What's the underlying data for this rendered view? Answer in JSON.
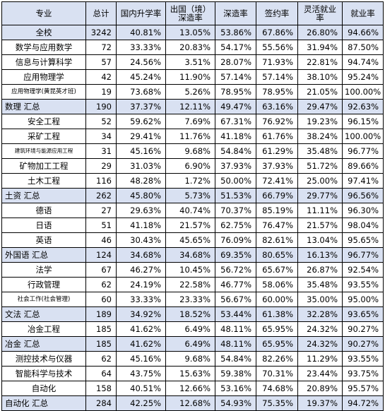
{
  "headers": [
    "专业",
    "总计",
    "国内升学率",
    "出国（境）深造率",
    "深造率",
    "签约率",
    "灵活就业率",
    "就业率"
  ],
  "rows": [
    {
      "name": "全校",
      "total": "3242",
      "domestic": "40.81%",
      "abroad": "13.05%",
      "further": "53.86%",
      "contract": "67.86%",
      "flexible": "26.80%",
      "employ": "94.66%",
      "kind": "sum",
      "align": "center",
      "size": ""
    },
    {
      "name": "数学与应用数学",
      "total": "72",
      "domestic": "33.33%",
      "abroad": "20.83%",
      "further": "54.17%",
      "contract": "55.56%",
      "flexible": "31.94%",
      "employ": "87.50%",
      "kind": "row",
      "align": "center",
      "size": ""
    },
    {
      "name": "信息与计算科学",
      "total": "57",
      "domestic": "24.56%",
      "abroad": "3.51%",
      "further": "28.07%",
      "contract": "71.93%",
      "flexible": "22.81%",
      "employ": "94.74%",
      "kind": "row",
      "align": "center",
      "size": ""
    },
    {
      "name": "应用物理学",
      "total": "42",
      "domestic": "45.24%",
      "abroad": "11.90%",
      "further": "57.14%",
      "contract": "57.14%",
      "flexible": "38.10%",
      "employ": "95.24%",
      "kind": "row",
      "align": "center",
      "size": ""
    },
    {
      "name": "应用物理学(黄昆英才班)",
      "total": "19",
      "domestic": "73.68%",
      "abroad": "5.26%",
      "further": "78.95%",
      "contract": "78.95%",
      "flexible": "21.05%",
      "employ": "100.00%",
      "kind": "row",
      "align": "center",
      "size": "small"
    },
    {
      "name": "数理 汇总",
      "total": "190",
      "domestic": "37.37%",
      "abroad": "12.11%",
      "further": "49.47%",
      "contract": "63.16%",
      "flexible": "29.47%",
      "employ": "92.63%",
      "kind": "sum",
      "align": "left",
      "size": ""
    },
    {
      "name": "安全工程",
      "total": "52",
      "domestic": "59.62%",
      "abroad": "7.69%",
      "further": "67.31%",
      "contract": "76.92%",
      "flexible": "19.23%",
      "employ": "96.15%",
      "kind": "row",
      "align": "center",
      "size": ""
    },
    {
      "name": "采矿工程",
      "total": "34",
      "domestic": "29.41%",
      "abroad": "11.76%",
      "further": "41.18%",
      "contract": "61.76%",
      "flexible": "38.24%",
      "employ": "100.00%",
      "kind": "row",
      "align": "center",
      "size": ""
    },
    {
      "name": "建筑环境与能源应用工程",
      "total": "31",
      "domestic": "45.16%",
      "abroad": "9.68%",
      "further": "54.84%",
      "contract": "61.29%",
      "flexible": "35.48%",
      "employ": "96.77%",
      "kind": "row",
      "align": "center",
      "size": "tiny"
    },
    {
      "name": "矿物加工工程",
      "total": "29",
      "domestic": "31.03%",
      "abroad": "6.90%",
      "further": "37.93%",
      "contract": "37.93%",
      "flexible": "51.72%",
      "employ": "89.66%",
      "kind": "row",
      "align": "center",
      "size": ""
    },
    {
      "name": "土木工程",
      "total": "116",
      "domestic": "48.28%",
      "abroad": "1.72%",
      "further": "50.00%",
      "contract": "72.41%",
      "flexible": "25.00%",
      "employ": "97.41%",
      "kind": "row",
      "align": "center",
      "size": ""
    },
    {
      "name": "土资 汇总",
      "total": "262",
      "domestic": "45.80%",
      "abroad": "5.73%",
      "further": "51.53%",
      "contract": "66.79%",
      "flexible": "29.77%",
      "employ": "96.56%",
      "kind": "sum",
      "align": "left",
      "size": ""
    },
    {
      "name": "德语",
      "total": "27",
      "domestic": "29.63%",
      "abroad": "40.74%",
      "further": "70.37%",
      "contract": "85.19%",
      "flexible": "11.11%",
      "employ": "96.30%",
      "kind": "row",
      "align": "center",
      "size": ""
    },
    {
      "name": "日语",
      "total": "51",
      "domestic": "41.18%",
      "abroad": "21.57%",
      "further": "62.75%",
      "contract": "76.47%",
      "flexible": "21.57%",
      "employ": "98.04%",
      "kind": "row",
      "align": "center",
      "size": ""
    },
    {
      "name": "英语",
      "total": "46",
      "domestic": "30.43%",
      "abroad": "45.65%",
      "further": "76.09%",
      "contract": "82.61%",
      "flexible": "13.04%",
      "employ": "95.65%",
      "kind": "row",
      "align": "center",
      "size": ""
    },
    {
      "name": "外国语 汇总",
      "total": "124",
      "domestic": "34.68%",
      "abroad": "34.68%",
      "further": "69.35%",
      "contract": "80.65%",
      "flexible": "16.13%",
      "employ": "96.77%",
      "kind": "sum",
      "align": "left",
      "size": ""
    },
    {
      "name": "法学",
      "total": "67",
      "domestic": "46.27%",
      "abroad": "10.45%",
      "further": "56.72%",
      "contract": "65.67%",
      "flexible": "26.87%",
      "employ": "92.54%",
      "kind": "row",
      "align": "center",
      "size": ""
    },
    {
      "name": "行政管理",
      "total": "62",
      "domestic": "24.19%",
      "abroad": "22.58%",
      "further": "46.77%",
      "contract": "58.06%",
      "flexible": "35.48%",
      "employ": "93.55%",
      "kind": "row",
      "align": "center",
      "size": ""
    },
    {
      "name": "社会工作(社会管理)",
      "total": "60",
      "domestic": "33.33%",
      "abroad": "23.33%",
      "further": "56.67%",
      "contract": "60.00%",
      "flexible": "35.00%",
      "employ": "95.00%",
      "kind": "row",
      "align": "center",
      "size": "small"
    },
    {
      "name": "文法 汇总",
      "total": "189",
      "domestic": "34.92%",
      "abroad": "18.52%",
      "further": "53.44%",
      "contract": "61.38%",
      "flexible": "32.28%",
      "employ": "93.65%",
      "kind": "sum",
      "align": "left",
      "size": ""
    },
    {
      "name": "冶金工程",
      "total": "185",
      "domestic": "41.62%",
      "abroad": "6.49%",
      "further": "48.11%",
      "contract": "65.95%",
      "flexible": "24.32%",
      "employ": "90.27%",
      "kind": "row",
      "align": "center",
      "size": ""
    },
    {
      "name": "冶金 汇总",
      "total": "185",
      "domestic": "41.62%",
      "abroad": "6.49%",
      "further": "48.11%",
      "contract": "65.95%",
      "flexible": "24.32%",
      "employ": "90.27%",
      "kind": "sum",
      "align": "left",
      "size": ""
    },
    {
      "name": "测控技术与仪器",
      "total": "62",
      "domestic": "45.16%",
      "abroad": "9.68%",
      "further": "54.84%",
      "contract": "82.26%",
      "flexible": "11.29%",
      "employ": "93.55%",
      "kind": "row",
      "align": "center",
      "size": ""
    },
    {
      "name": "智能科学与技术",
      "total": "64",
      "domestic": "43.75%",
      "abroad": "15.63%",
      "further": "59.38%",
      "contract": "70.31%",
      "flexible": "23.44%",
      "employ": "93.75%",
      "kind": "row",
      "align": "center",
      "size": ""
    },
    {
      "name": "自动化",
      "total": "158",
      "domestic": "40.51%",
      "abroad": "12.66%",
      "further": "53.16%",
      "contract": "74.68%",
      "flexible": "20.89%",
      "employ": "95.57%",
      "kind": "row",
      "align": "center",
      "size": ""
    },
    {
      "name": "自动化 汇总",
      "total": "284",
      "domestic": "42.25%",
      "abroad": "12.68%",
      "further": "54.93%",
      "contract": "75.35%",
      "flexible": "19.37%",
      "employ": "94.72%",
      "kind": "sum",
      "align": "left",
      "size": ""
    }
  ]
}
